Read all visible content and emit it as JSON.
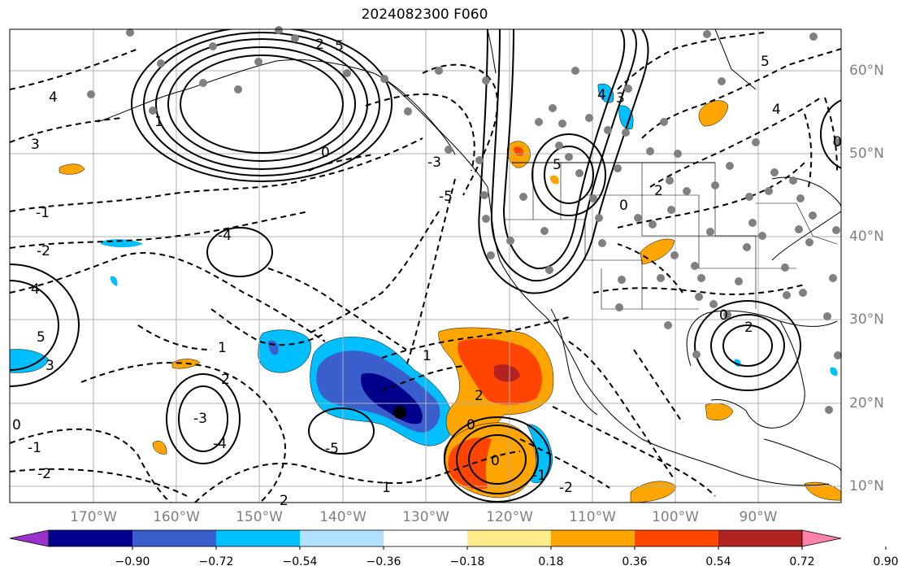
{
  "title": "2024082300 F060",
  "lon_labels": [
    "170°W",
    "160°W",
    "150°W",
    "140°W",
    "130°W",
    "120°W",
    "110°W",
    "100°W",
    "90°W"
  ],
  "lat_labels": [
    "60°N",
    "50°N",
    "40°N",
    "30°N",
    "20°N",
    "10°N"
  ],
  "colorbar": {
    "labels": [
      "−0.90",
      "−0.72",
      "−0.54",
      "−0.36",
      "−0.18",
      "0.18",
      "0.36",
      "0.54",
      "0.72",
      "0.90"
    ],
    "colors": [
      "#9932cc",
      "#00008b",
      "#3a5fcd",
      "#00bfff",
      "#b0e2ff",
      "#ffffff",
      "#ffec8b",
      "#ffa500",
      "#ff4500",
      "#b22222",
      "#ff82ab"
    ]
  },
  "contour_labels": [
    "5",
    "4",
    "3",
    "2",
    "1",
    "0",
    "-1",
    "-2",
    "-3",
    "-4",
    "-5",
    "4",
    "5",
    "3",
    "2",
    "1",
    "0",
    "-1",
    "-2",
    "-3",
    "-4",
    "-5",
    "2",
    "1",
    "0",
    "-1",
    "-2"
  ],
  "colors": {
    "grid": "#b0b0b0",
    "contour": "#000000",
    "station": "#808080"
  }
}
